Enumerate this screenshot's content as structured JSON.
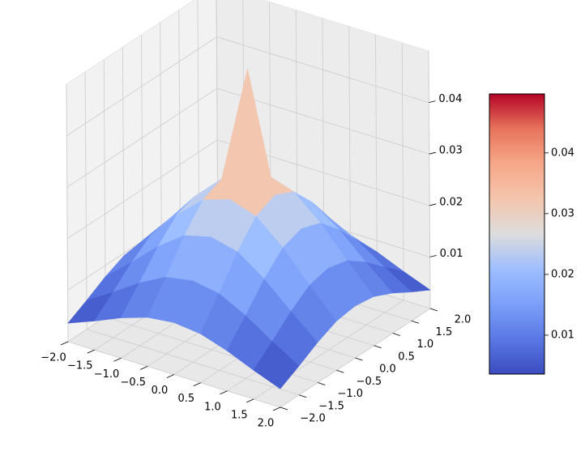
{
  "chart_data": {
    "type": "surface3d",
    "title": "",
    "xlabel": "",
    "ylabel": "",
    "zlabel": "",
    "grid": true,
    "colormap": "coolwarm",
    "colors": {
      "pane": "#f2f2f2",
      "grid": "#cfcfcf",
      "cmap_low": "#3b4cc0",
      "cmap_mid": "#dddddd",
      "cmap_high": "#b40426"
    },
    "x": [
      -2.0,
      -1.5,
      -1.0,
      -0.5,
      0.0,
      0.5,
      1.0,
      1.5,
      2.0
    ],
    "y": [
      -2.0,
      -1.5,
      -1.0,
      -0.5,
      0.0,
      0.5,
      1.0,
      1.5,
      2.0
    ],
    "x_ticks": [
      "−2.0",
      "−1.5",
      "−1.0",
      "−0.5",
      "0.0",
      "0.5",
      "1.0",
      "1.5",
      "2.0"
    ],
    "y_ticks": [
      "−2.0",
      "−1.5",
      "−1.0",
      "−0.5",
      "0.0",
      "0.5",
      "1.0",
      "1.5",
      "2.0"
    ],
    "z_ticks": [
      "0.01",
      "0.02",
      "0.03",
      "0.04"
    ],
    "z_tick_values": [
      0.01,
      0.02,
      0.03,
      0.04
    ],
    "colorbar_ticks": [
      "0.01",
      "0.02",
      "0.03",
      "0.04"
    ],
    "colorbar_tick_values": [
      0.01,
      0.02,
      0.03,
      0.04
    ],
    "xlim": [
      -2.0,
      2.0
    ],
    "ylim": [
      -2.0,
      2.0
    ],
    "zlim": [
      0.0,
      0.05
    ],
    "colorbar_range": [
      0.0036,
      0.0497
    ],
    "z": [
      [
        0.0036,
        0.0056,
        0.0078,
        0.0095,
        0.0101,
        0.0095,
        0.0078,
        0.0056,
        0.0036
      ],
      [
        0.0056,
        0.0088,
        0.0122,
        0.0149,
        0.0158,
        0.0149,
        0.0122,
        0.0088,
        0.0056
      ],
      [
        0.0078,
        0.0122,
        0.0169,
        0.0206,
        0.0219,
        0.0206,
        0.0169,
        0.0122,
        0.0078
      ],
      [
        0.0095,
        0.0149,
        0.0206,
        0.0251,
        0.0268,
        0.0251,
        0.0206,
        0.0149,
        0.0095
      ],
      [
        0.0101,
        0.0158,
        0.0219,
        0.0268,
        0.0497,
        0.0268,
        0.0219,
        0.0158,
        0.0101
      ],
      [
        0.0095,
        0.0149,
        0.0206,
        0.0251,
        0.0268,
        0.0251,
        0.0206,
        0.0149,
        0.0095
      ],
      [
        0.0078,
        0.0122,
        0.0169,
        0.0206,
        0.0219,
        0.0206,
        0.0169,
        0.0122,
        0.0078
      ],
      [
        0.0056,
        0.0088,
        0.0122,
        0.0149,
        0.0158,
        0.0149,
        0.0122,
        0.0088,
        0.0056
      ],
      [
        0.0036,
        0.0056,
        0.0078,
        0.0095,
        0.0101,
        0.0095,
        0.0078,
        0.0056,
        0.0036
      ]
    ]
  }
}
